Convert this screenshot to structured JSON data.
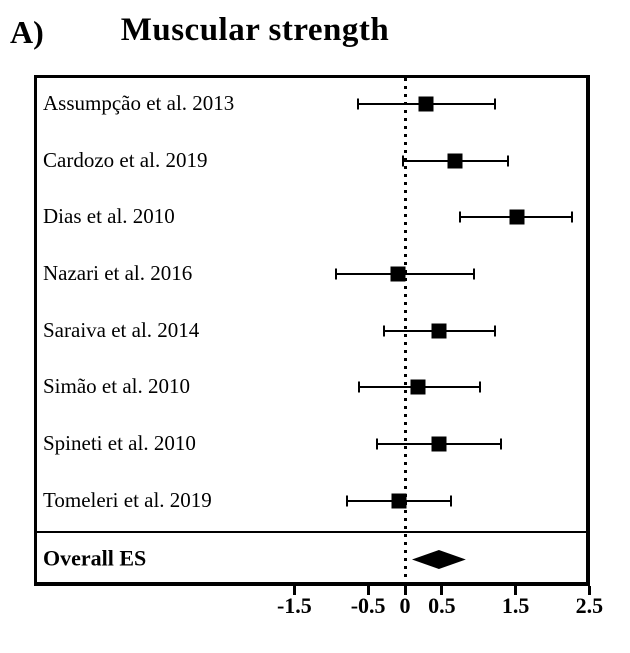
{
  "header": {
    "panel_label": "A)",
    "title": "Muscular strength"
  },
  "chart_data": {
    "type": "scatter",
    "subtype": "forest-plot",
    "panel_label": "A)",
    "title": "Muscular strength",
    "effect_measure": "ES",
    "x_axis": {
      "tick_labels": [
        "-1.5",
        "-0.5",
        "0",
        "0.5",
        "1.5",
        "2.5"
      ],
      "tick_values": [
        -1.5,
        -0.5,
        0,
        0.5,
        1.5,
        2.5
      ],
      "zero_reference_line": "dotted",
      "grid": "off"
    },
    "legend": "none",
    "studies": [
      {
        "label": "Assumpção et al. 2013",
        "es": 0.29,
        "ci_low": -0.64,
        "ci_high": 1.22
      },
      {
        "label": "Cardozo et al. 2019",
        "es": 0.68,
        "ci_low": -0.03,
        "ci_high": 1.4
      },
      {
        "label": "Dias et al. 2010",
        "es": 1.52,
        "ci_low": 0.75,
        "ci_high": 2.27
      },
      {
        "label": "Nazari et al. 2016",
        "es": -0.09,
        "ci_low": -0.93,
        "ci_high": 0.93
      },
      {
        "label": "Saraiva et al. 2014",
        "es": 0.46,
        "ci_low": -0.29,
        "ci_high": 1.22
      },
      {
        "label": "Simão et al. 2010",
        "es": 0.18,
        "ci_low": -0.63,
        "ci_high": 1.02
      },
      {
        "label": "Spineti et al. 2010",
        "es": 0.46,
        "ci_low": -0.38,
        "ci_high": 1.3
      },
      {
        "label": "Tomeleri et al. 2019",
        "es": -0.08,
        "ci_low": -0.78,
        "ci_high": 0.63
      }
    ],
    "overall": {
      "label": "Overall ES",
      "es": 0.47,
      "ci_low": 0.1,
      "ci_high": 0.83
    },
    "colors": {
      "marker": "#000000",
      "line": "#000000",
      "border": "#000000",
      "background": "#ffffff"
    }
  }
}
